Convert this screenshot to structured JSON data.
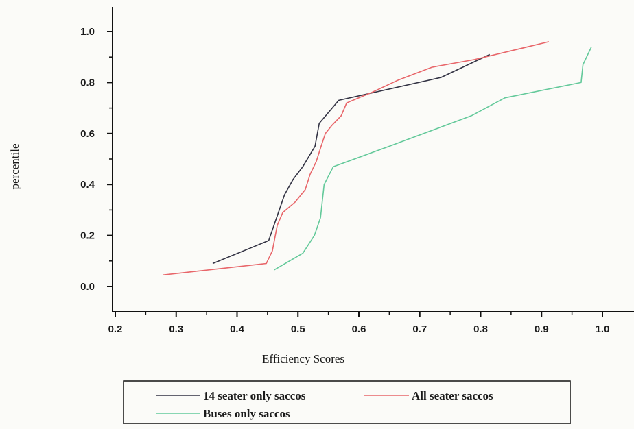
{
  "chart_data": {
    "type": "line",
    "title": "",
    "xlabel": "Efficiency Scores",
    "ylabel": "percentile",
    "xlim": [
      0.2,
      1.0
    ],
    "ylim": [
      -0.1,
      1.1
    ],
    "xticks": [
      "0.2",
      "0.3",
      "0.4",
      "0.5",
      "0.6",
      "0.7",
      "0.8",
      "0.9",
      "1.0"
    ],
    "yticks": [
      "0.0",
      "0.2",
      "0.4",
      "0.6",
      "0.8",
      "1.0"
    ],
    "grid": false,
    "legend_position": "bottom",
    "series": [
      {
        "name": "14 seater only saccos",
        "color": "#333344",
        "x": [
          0.36,
          0.452,
          0.478,
          0.492,
          0.508,
          0.528,
          0.535,
          0.567,
          0.735,
          0.815
        ],
        "y": [
          0.09,
          0.18,
          0.36,
          0.42,
          0.47,
          0.55,
          0.64,
          0.73,
          0.82,
          0.91
        ]
      },
      {
        "name": "All seater saccos",
        "color": "#e8666a",
        "x": [
          0.278,
          0.448,
          0.458,
          0.466,
          0.475,
          0.495,
          0.512,
          0.52,
          0.53,
          0.538,
          0.545,
          0.555,
          0.571,
          0.58,
          0.62,
          0.665,
          0.72,
          0.79,
          0.912
        ],
        "y": [
          0.045,
          0.09,
          0.14,
          0.24,
          0.29,
          0.33,
          0.38,
          0.44,
          0.49,
          0.55,
          0.6,
          0.63,
          0.67,
          0.72,
          0.76,
          0.81,
          0.86,
          0.89,
          0.96
        ]
      },
      {
        "name": "Buses only saccos",
        "color": "#63c99a",
        "x": [
          0.461,
          0.508,
          0.527,
          0.537,
          0.543,
          0.558,
          0.57,
          0.65,
          0.785,
          0.84,
          0.965,
          0.968,
          0.982
        ],
        "y": [
          0.065,
          0.13,
          0.2,
          0.27,
          0.4,
          0.47,
          0.48,
          0.55,
          0.67,
          0.74,
          0.8,
          0.87,
          0.94
        ]
      }
    ]
  }
}
